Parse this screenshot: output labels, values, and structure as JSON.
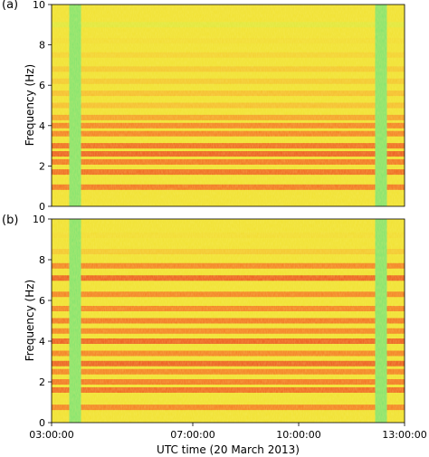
{
  "chart_data": [
    {
      "type": "heatmap",
      "panel_label": "(a)",
      "ylabel": "Frequency (Hz)",
      "xlabel": "",
      "ylim": [
        0,
        10
      ],
      "yticks": [
        0,
        2,
        4,
        6,
        8,
        10
      ],
      "xlim": [
        "03:00:00",
        "13:00:00"
      ],
      "xtick_labels": [],
      "colormap": [
        "#69e07a",
        "#a6e85b",
        "#f0e632",
        "#f7b52a",
        "#f56a1e",
        "#e8321a"
      ],
      "gaps": [
        [
          "03:30:00",
          "03:50:00"
        ],
        [
          "12:10:00",
          "12:30:00"
        ]
      ],
      "bands": [
        {
          "hz": 0.95,
          "level": 0.85
        },
        {
          "hz": 1.7,
          "level": 0.9
        },
        {
          "hz": 2.2,
          "level": 0.85
        },
        {
          "hz": 2.6,
          "level": 0.95
        },
        {
          "hz": 3.0,
          "level": 0.9
        },
        {
          "hz": 3.6,
          "level": 0.8
        },
        {
          "hz": 4.0,
          "level": 0.8
        },
        {
          "hz": 4.4,
          "level": 0.7
        },
        {
          "hz": 5.0,
          "level": 0.6
        },
        {
          "hz": 5.6,
          "level": 0.6
        },
        {
          "hz": 6.2,
          "level": 0.55
        },
        {
          "hz": 6.8,
          "level": 0.55
        },
        {
          "hz": 7.5,
          "level": 0.5
        },
        {
          "hz": 8.2,
          "level": 0.45
        },
        {
          "hz": 9.0,
          "level": 0.35
        }
      ]
    },
    {
      "type": "heatmap",
      "panel_label": "(b)",
      "ylabel": "Frequency (Hz)",
      "xlabel": "UTC time (20 March 2013)",
      "ylim": [
        0,
        10
      ],
      "yticks": [
        0,
        2,
        4,
        6,
        8,
        10
      ],
      "xlim": [
        "03:00:00",
        "13:00:00"
      ],
      "xtick_labels": [
        "03:00:00",
        "07:00:00",
        "10:00:00",
        "13:00:00"
      ],
      "colormap": [
        "#69e07a",
        "#a6e85b",
        "#f0e632",
        "#f7b52a",
        "#f56a1e",
        "#e8321a"
      ],
      "gaps": [
        [
          "03:30:00",
          "03:50:00"
        ],
        [
          "12:10:00",
          "12:30:00"
        ]
      ],
      "bands": [
        {
          "hz": 0.75,
          "level": 0.8
        },
        {
          "hz": 1.6,
          "level": 0.9
        },
        {
          "hz": 2.0,
          "level": 0.85
        },
        {
          "hz": 2.5,
          "level": 0.8
        },
        {
          "hz": 2.9,
          "level": 0.95
        },
        {
          "hz": 3.4,
          "level": 0.8
        },
        {
          "hz": 4.0,
          "level": 0.95
        },
        {
          "hz": 4.5,
          "level": 0.8
        },
        {
          "hz": 5.0,
          "level": 0.85
        },
        {
          "hz": 5.6,
          "level": 0.8
        },
        {
          "hz": 6.3,
          "level": 0.8
        },
        {
          "hz": 7.1,
          "level": 0.95
        },
        {
          "hz": 7.7,
          "level": 0.8
        },
        {
          "hz": 8.4,
          "level": 0.55
        },
        {
          "hz": 9.2,
          "level": 0.45
        }
      ]
    }
  ]
}
